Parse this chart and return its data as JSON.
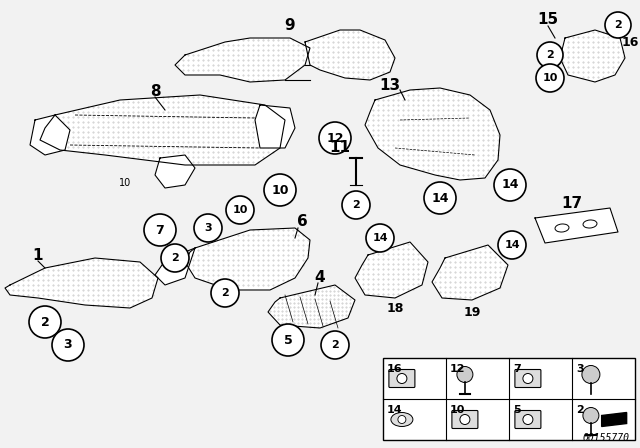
{
  "bg_color": "#ffffff",
  "doc_number": "00155770",
  "fig_width": 6.4,
  "fig_height": 4.48,
  "dpi": 100,
  "outer_bg": "#f2f2f2",
  "line_color": "#000000",
  "dot_color": "#888888"
}
